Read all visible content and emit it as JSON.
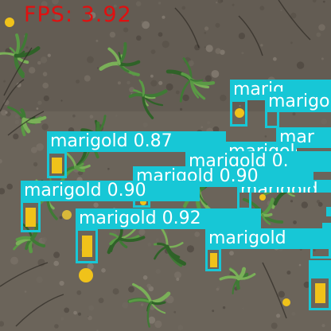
{
  "fps_label": "FPS: 3.92",
  "colors": {
    "box": "#17c7d6",
    "label_text": "#ffffff",
    "fps_text": "#e01010",
    "soil": "#6b645a",
    "grass": "#3f7a35",
    "flower": "#f0c21a"
  },
  "detections": [
    {
      "label": "marigold",
      "score": "0.87"
    },
    {
      "label": "marigold",
      "score": "0.90"
    },
    {
      "label": "marigold",
      "score": "0.92"
    },
    {
      "label": "marigold",
      "score": "0.90"
    },
    {
      "label": "marigold",
      "score": ""
    },
    {
      "label": "marigold",
      "score": ""
    },
    {
      "label": "marigold",
      "score": ""
    },
    {
      "label": "mar",
      "score": ""
    },
    {
      "label": "marig",
      "score": ""
    },
    {
      "label": "marigold",
      "score": "0."
    }
  ]
}
